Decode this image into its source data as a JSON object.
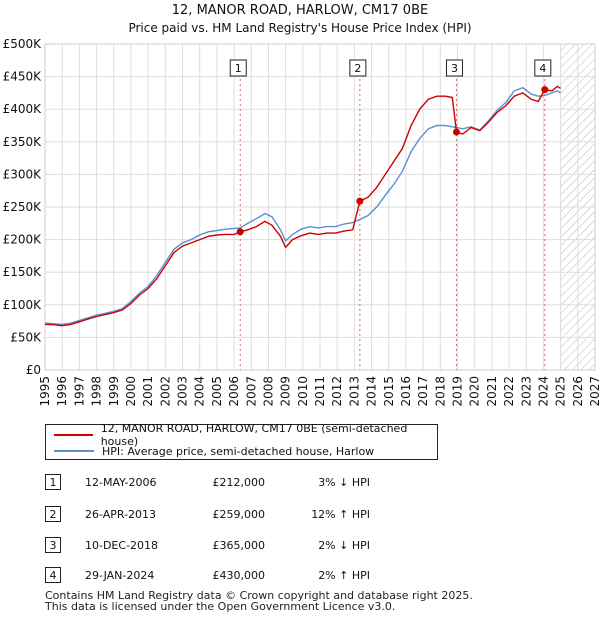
{
  "chart_data": {
    "type": "line",
    "title": "12, MANOR ROAD, HARLOW, CM17 0BE",
    "subtitle": "Price paid vs. HM Land Registry's House Price Index (HPI)",
    "xlim": [
      1995,
      2027
    ],
    "ylim": [
      0,
      500000
    ],
    "x_ticks": [
      "1995",
      "1996",
      "1997",
      "1998",
      "1999",
      "2000",
      "2001",
      "2002",
      "2003",
      "2004",
      "2005",
      "2006",
      "2007",
      "2008",
      "2009",
      "2010",
      "2011",
      "2012",
      "2013",
      "2014",
      "2015",
      "2016",
      "2017",
      "2018",
      "2019",
      "2020",
      "2021",
      "2022",
      "2023",
      "2024",
      "2025",
      "2026",
      "2027"
    ],
    "y_ticks": [
      {
        "value": 0,
        "label": "£0"
      },
      {
        "value": 50000,
        "label": "£50K"
      },
      {
        "value": 100000,
        "label": "£100K"
      },
      {
        "value": 150000,
        "label": "£150K"
      },
      {
        "value": 200000,
        "label": "£200K"
      },
      {
        "value": 250000,
        "label": "£250K"
      },
      {
        "value": 300000,
        "label": "£300K"
      },
      {
        "value": 350000,
        "label": "£350K"
      },
      {
        "value": 400000,
        "label": "£400K"
      },
      {
        "value": 450000,
        "label": "£450K"
      },
      {
        "value": 500000,
        "label": "£500K"
      }
    ],
    "projection_start": 2025.0,
    "grid": true,
    "series": [
      {
        "name": "12, MANOR ROAD, HARLOW, CM17 0BE (semi-detached house)",
        "color": "#cc0000",
        "points": [
          [
            1995.0,
            70000
          ],
          [
            1995.5,
            69500
          ],
          [
            1996.0,
            68000
          ],
          [
            1996.5,
            70000
          ],
          [
            1997.0,
            74000
          ],
          [
            1997.5,
            78000
          ],
          [
            1998.0,
            82000
          ],
          [
            1998.5,
            85000
          ],
          [
            1999.0,
            88000
          ],
          [
            1999.5,
            92000
          ],
          [
            2000.0,
            102000
          ],
          [
            2000.5,
            115000
          ],
          [
            2001.0,
            125000
          ],
          [
            2001.5,
            140000
          ],
          [
            2002.0,
            160000
          ],
          [
            2002.5,
            180000
          ],
          [
            2003.0,
            190000
          ],
          [
            2003.5,
            195000
          ],
          [
            2004.0,
            200000
          ],
          [
            2004.5,
            205000
          ],
          [
            2005.0,
            207000
          ],
          [
            2005.5,
            208000
          ],
          [
            2006.0,
            208000
          ],
          [
            2006.36,
            212000
          ],
          [
            2006.8,
            215000
          ],
          [
            2007.3,
            220000
          ],
          [
            2007.8,
            228000
          ],
          [
            2008.2,
            222000
          ],
          [
            2008.7,
            205000
          ],
          [
            2009.0,
            188000
          ],
          [
            2009.4,
            200000
          ],
          [
            2009.9,
            206000
          ],
          [
            2010.4,
            210000
          ],
          [
            2010.9,
            208000
          ],
          [
            2011.4,
            210000
          ],
          [
            2011.9,
            210000
          ],
          [
            2012.4,
            213000
          ],
          [
            2012.9,
            215000
          ],
          [
            2013.32,
            259000
          ],
          [
            2013.8,
            265000
          ],
          [
            2014.3,
            280000
          ],
          [
            2014.8,
            300000
          ],
          [
            2015.3,
            320000
          ],
          [
            2015.8,
            340000
          ],
          [
            2016.3,
            375000
          ],
          [
            2016.8,
            400000
          ],
          [
            2017.3,
            415000
          ],
          [
            2017.8,
            420000
          ],
          [
            2018.3,
            420000
          ],
          [
            2018.7,
            418000
          ],
          [
            2018.94,
            365000
          ],
          [
            2019.3,
            362000
          ],
          [
            2019.8,
            372000
          ],
          [
            2020.3,
            367000
          ],
          [
            2020.8,
            380000
          ],
          [
            2021.3,
            395000
          ],
          [
            2021.8,
            405000
          ],
          [
            2022.3,
            420000
          ],
          [
            2022.8,
            425000
          ],
          [
            2023.3,
            415000
          ],
          [
            2023.7,
            412000
          ],
          [
            2024.08,
            430000
          ],
          [
            2024.5,
            428000
          ],
          [
            2024.8,
            435000
          ],
          [
            2025.0,
            432000
          ]
        ]
      },
      {
        "name": "HPI: Average price, semi-detached house, Harlow",
        "color": "#5b8fd1",
        "points": [
          [
            1995.0,
            72000
          ],
          [
            1995.5,
            71000
          ],
          [
            1996.0,
            70000
          ],
          [
            1996.5,
            72000
          ],
          [
            1997.0,
            76000
          ],
          [
            1997.5,
            80000
          ],
          [
            1998.0,
            84000
          ],
          [
            1998.5,
            87000
          ],
          [
            1999.0,
            90000
          ],
          [
            1999.5,
            94000
          ],
          [
            2000.0,
            105000
          ],
          [
            2000.5,
            118000
          ],
          [
            2001.0,
            128000
          ],
          [
            2001.5,
            145000
          ],
          [
            2002.0,
            165000
          ],
          [
            2002.5,
            185000
          ],
          [
            2003.0,
            195000
          ],
          [
            2003.5,
            200000
          ],
          [
            2004.0,
            207000
          ],
          [
            2004.5,
            212000
          ],
          [
            2005.0,
            214000
          ],
          [
            2005.5,
            216000
          ],
          [
            2006.0,
            217000
          ],
          [
            2006.36,
            218000
          ],
          [
            2006.8,
            225000
          ],
          [
            2007.3,
            232000
          ],
          [
            2007.8,
            240000
          ],
          [
            2008.2,
            235000
          ],
          [
            2008.7,
            215000
          ],
          [
            2009.0,
            198000
          ],
          [
            2009.4,
            208000
          ],
          [
            2009.9,
            216000
          ],
          [
            2010.4,
            220000
          ],
          [
            2010.9,
            218000
          ],
          [
            2011.4,
            220000
          ],
          [
            2011.9,
            220000
          ],
          [
            2012.4,
            224000
          ],
          [
            2012.9,
            226000
          ],
          [
            2013.32,
            231000
          ],
          [
            2013.8,
            237000
          ],
          [
            2014.3,
            250000
          ],
          [
            2014.8,
            268000
          ],
          [
            2015.3,
            285000
          ],
          [
            2015.8,
            305000
          ],
          [
            2016.3,
            335000
          ],
          [
            2016.8,
            355000
          ],
          [
            2017.3,
            370000
          ],
          [
            2017.8,
            375000
          ],
          [
            2018.3,
            375000
          ],
          [
            2018.7,
            373000
          ],
          [
            2018.94,
            372000
          ],
          [
            2019.3,
            370000
          ],
          [
            2019.8,
            373000
          ],
          [
            2020.3,
            368000
          ],
          [
            2020.8,
            382000
          ],
          [
            2021.3,
            398000
          ],
          [
            2021.8,
            410000
          ],
          [
            2022.3,
            428000
          ],
          [
            2022.8,
            433000
          ],
          [
            2023.3,
            423000
          ],
          [
            2023.7,
            420000
          ],
          [
            2024.08,
            421000
          ],
          [
            2024.5,
            425000
          ],
          [
            2024.8,
            428000
          ],
          [
            2025.0,
            425000
          ]
        ]
      }
    ],
    "transactions": [
      {
        "num": "1",
        "x": 2006.36,
        "price": 212000
      },
      {
        "num": "2",
        "x": 2013.32,
        "price": 259000
      },
      {
        "num": "3",
        "x": 2018.94,
        "price": 365000
      },
      {
        "num": "4",
        "x": 2024.08,
        "price": 430000
      }
    ]
  },
  "legend": {
    "property": "12, MANOR ROAD, HARLOW, CM17 0BE (semi-detached house)",
    "hpi": "HPI: Average price, semi-detached house, Harlow"
  },
  "table": [
    {
      "num": "1",
      "date": "12-MAY-2006",
      "price": "£212,000",
      "hpi": "3% ↓ HPI"
    },
    {
      "num": "2",
      "date": "26-APR-2013",
      "price": "£259,000",
      "hpi": "12% ↑ HPI"
    },
    {
      "num": "3",
      "date": "10-DEC-2018",
      "price": "£365,000",
      "hpi": "2% ↓ HPI"
    },
    {
      "num": "4",
      "date": "29-JAN-2024",
      "price": "£430,000",
      "hpi": "2% ↑ HPI"
    }
  ],
  "footer": {
    "line1": "Contains HM Land Registry data © Crown copyright and database right 2025.",
    "line2": "This data is licensed under the Open Government Licence v3.0."
  },
  "colors": {
    "property": "#cc0000",
    "hpi": "#5b8fd1",
    "grid": "#dddddd",
    "hatch": "#999999"
  }
}
